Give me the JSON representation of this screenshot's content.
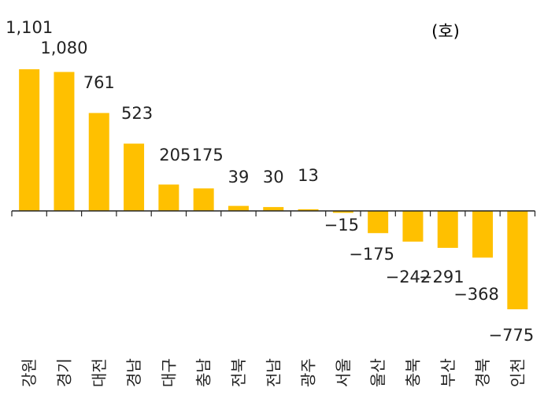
{
  "chart_data": {
    "type": "bar",
    "unit_label": "(호)",
    "categories": [
      "강원",
      "경기",
      "대전",
      "경남",
      "대구",
      "충남",
      "전북",
      "전남",
      "광주",
      "서울",
      "울산",
      "충북",
      "부산",
      "경북",
      "인천"
    ],
    "values": [
      1101,
      1080,
      761,
      523,
      205,
      175,
      39,
      30,
      13,
      -15,
      -175,
      -242,
      -291,
      -368,
      -775
    ],
    "value_labels": [
      "1,101",
      "1,080",
      "761",
      "523",
      "205",
      "175",
      "39",
      "30",
      "13",
      "−15",
      "−175",
      "−242",
      "−291",
      "−368",
      "−775"
    ],
    "ylim": [
      -775,
      1101
    ],
    "grid": false,
    "legend": "none",
    "colors": {
      "bar": "#FFC000",
      "axis": "#222222",
      "text": "#222222"
    }
  }
}
